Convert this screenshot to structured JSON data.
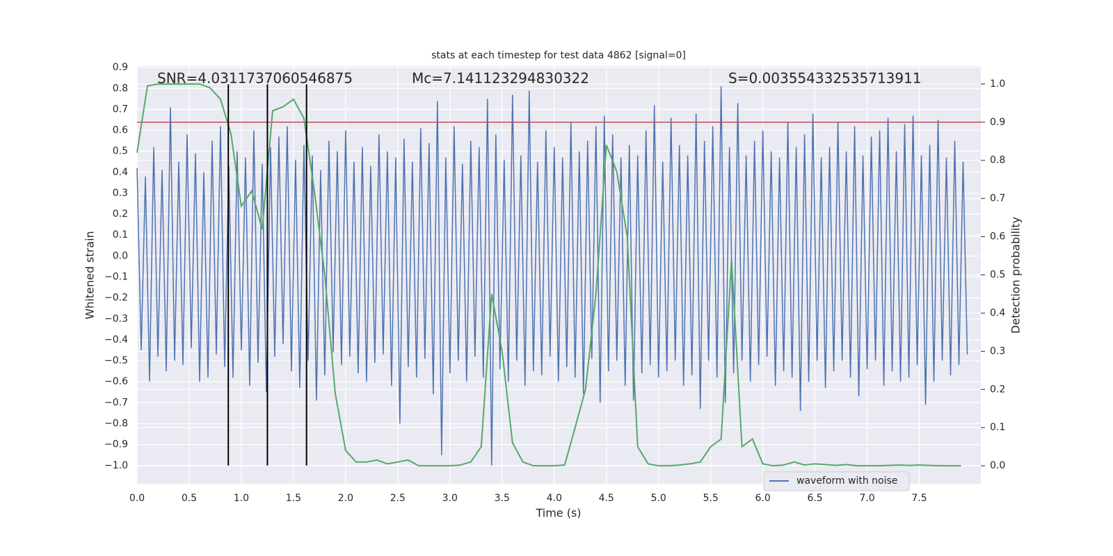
{
  "chart_data": {
    "type": "line",
    "title": "stats at each timestep for test data 4862 [signal=0]",
    "xlabel": "Time (s)",
    "ylabel": "Whitened strain",
    "y2label": "Detection probability",
    "annotations": [
      "SNR=4.0311737060546875",
      "Mc=7.141123294830322",
      "S=0.003554332535713911"
    ],
    "xlim": [
      0,
      8.09
    ],
    "ylim": [
      -1.087,
      0.907
    ],
    "y2lim": [
      -0.047,
      1.047
    ],
    "xticks": [
      {
        "value": 0,
        "label": "0.0"
      },
      0.5,
      {
        "value": 1,
        "label": "1.0"
      },
      1.5,
      {
        "value": 2,
        "label": "2.0"
      },
      2.5,
      {
        "value": 3,
        "label": "3.0"
      },
      3.5,
      {
        "value": 4,
        "label": "4.0"
      },
      4.5,
      {
        "value": 5,
        "label": "5.0"
      },
      5.5,
      {
        "value": 6,
        "label": "6.0"
      },
      6.5,
      {
        "value": 7,
        "label": "7.0"
      },
      7.5
    ],
    "yticks": [
      {
        "value": -1,
        "label": "−1.0"
      },
      {
        "value": -0.9,
        "label": "−0.9"
      },
      {
        "value": -0.8,
        "label": "−0.8"
      },
      {
        "value": -0.7,
        "label": "−0.7"
      },
      {
        "value": -0.6,
        "label": "−0.6"
      },
      {
        "value": -0.5,
        "label": "−0.5"
      },
      {
        "value": -0.4,
        "label": "−0.4"
      },
      {
        "value": -0.3,
        "label": "−0.3"
      },
      {
        "value": -0.2,
        "label": "−0.2"
      },
      {
        "value": -0.1,
        "label": "−0.1"
      },
      {
        "value": 0,
        "label": "0.0"
      },
      0.1,
      0.2,
      0.3,
      0.4,
      0.5,
      0.6,
      0.7,
      0.8,
      0.9
    ],
    "y2ticks": [
      {
        "value": 0,
        "label": "0.0"
      },
      0.1,
      0.2,
      0.3,
      0.4,
      0.5,
      0.6,
      0.7,
      0.8,
      0.9,
      {
        "value": 1,
        "label": "1.0"
      }
    ],
    "grid": true,
    "legend": "lower right",
    "threshold": {
      "value": 0.9,
      "color": "#c44e52",
      "axis": "y2"
    },
    "vlines": {
      "x": [
        0.875,
        1.25,
        1.625
      ],
      "ylim": [
        -1.0,
        0.82
      ],
      "color": "#000000"
    },
    "series": [
      {
        "name": "waveform with noise",
        "color": "#4c72b0",
        "x": [
          0,
          0.04,
          0.08,
          0.12,
          0.16,
          0.2,
          0.24,
          0.28,
          0.32,
          0.36,
          0.4,
          0.44,
          0.48,
          0.52,
          0.56,
          0.6,
          0.64,
          0.68,
          0.72,
          0.76,
          0.8,
          0.84,
          0.88,
          0.92,
          0.96,
          1,
          1.04,
          1.08,
          1.12,
          1.16,
          1.2,
          1.24,
          1.28,
          1.32,
          1.36,
          1.4,
          1.44,
          1.48,
          1.52,
          1.56,
          1.6,
          1.64,
          1.68,
          1.72,
          1.76,
          1.8,
          1.84,
          1.88,
          1.92,
          1.96,
          2,
          2.04,
          2.08,
          2.12,
          2.16,
          2.2,
          2.24,
          2.28,
          2.32,
          2.36,
          2.4,
          2.44,
          2.48,
          2.52,
          2.56,
          2.6,
          2.64,
          2.68,
          2.72,
          2.76,
          2.8,
          2.84,
          2.88,
          2.92,
          2.96,
          3,
          3.04,
          3.08,
          3.12,
          3.16,
          3.2,
          3.24,
          3.28,
          3.32,
          3.36,
          3.4,
          3.44,
          3.48,
          3.52,
          3.56,
          3.6,
          3.64,
          3.68,
          3.72,
          3.76,
          3.8,
          3.84,
          3.88,
          3.92,
          3.96,
          4,
          4.04,
          4.08,
          4.12,
          4.16,
          4.2,
          4.24,
          4.28,
          4.32,
          4.36,
          4.4,
          4.44,
          4.48,
          4.52,
          4.56,
          4.6,
          4.64,
          4.68,
          4.72,
          4.76,
          4.8,
          4.84,
          4.88,
          4.92,
          4.96,
          5,
          5.04,
          5.08,
          5.12,
          5.16,
          5.2,
          5.24,
          5.28,
          5.32,
          5.36,
          5.4,
          5.44,
          5.48,
          5.52,
          5.56,
          5.6,
          5.64,
          5.68,
          5.72,
          5.76,
          5.8,
          5.84,
          5.88,
          5.92,
          5.96,
          6,
          6.04,
          6.08,
          6.12,
          6.16,
          6.2,
          6.24,
          6.28,
          6.32,
          6.36,
          6.4,
          6.44,
          6.48,
          6.52,
          6.56,
          6.6,
          6.64,
          6.68,
          6.72,
          6.76,
          6.8,
          6.84,
          6.88,
          6.92,
          6.96,
          7,
          7.04,
          7.08,
          7.12,
          7.16,
          7.2,
          7.24,
          7.28,
          7.32,
          7.36,
          7.4,
          7.44,
          7.48,
          7.52,
          7.56,
          7.6,
          7.64,
          7.68,
          7.72,
          7.76,
          7.8,
          7.84,
          7.88,
          7.92,
          7.96
        ],
        "values": [
          0.42,
          -0.45,
          0.38,
          -0.6,
          0.52,
          -0.48,
          0.41,
          -0.55,
          0.71,
          -0.5,
          0.45,
          -0.52,
          0.58,
          -0.44,
          0.49,
          -0.6,
          0.4,
          -0.58,
          0.55,
          -0.47,
          0.62,
          -0.53,
          0.43,
          -0.58,
          0.5,
          -0.45,
          0.47,
          -0.62,
          0.6,
          -0.51,
          0.44,
          -0.65,
          0.52,
          -0.48,
          0.57,
          -0.42,
          0.62,
          -0.55,
          0.46,
          -0.63,
          0.53,
          -0.5,
          0.48,
          -0.69,
          0.41,
          -0.57,
          0.55,
          -0.46,
          0.5,
          -0.52,
          0.6,
          -0.48,
          0.45,
          -0.56,
          0.52,
          -0.6,
          0.43,
          -0.51,
          0.58,
          -0.47,
          0.5,
          -0.62,
          0.47,
          -0.8,
          0.56,
          -0.53,
          0.45,
          -0.58,
          0.61,
          -0.49,
          0.54,
          -0.66,
          0.74,
          -0.95,
          0.47,
          -0.56,
          0.62,
          -0.5,
          0.44,
          -0.6,
          0.55,
          -0.48,
          0.52,
          -0.58,
          0.75,
          -1.0,
          0.58,
          -0.54,
          0.46,
          -0.6,
          0.77,
          -0.5,
          0.48,
          -0.62,
          0.79,
          -0.55,
          0.45,
          -0.57,
          0.6,
          -0.48,
          0.52,
          -0.6,
          0.47,
          -0.53,
          0.64,
          -0.58,
          0.5,
          -0.66,
          0.55,
          -0.49,
          0.62,
          -0.7,
          0.67,
          -0.55,
          0.58,
          -0.5,
          0.47,
          -0.62,
          0.53,
          -0.69,
          0.48,
          -0.56,
          0.6,
          -0.52,
          0.72,
          -0.58,
          0.45,
          -0.55,
          0.66,
          -0.5,
          0.53,
          -0.62,
          0.48,
          -0.57,
          0.68,
          -0.73,
          0.55,
          -0.5,
          0.62,
          -0.58,
          0.81,
          -0.7,
          0.52,
          -0.56,
          0.73,
          -0.5,
          0.48,
          -0.6,
          0.55,
          -0.52,
          0.6,
          -0.48,
          0.5,
          -0.62,
          0.47,
          -0.55,
          0.64,
          -0.58,
          0.52,
          -0.74,
          0.58,
          -0.6,
          0.68,
          -0.5,
          0.47,
          -0.63,
          0.52,
          -0.55,
          0.64,
          -0.5,
          0.5,
          -0.58,
          0.62,
          -0.67,
          0.48,
          -0.54,
          0.57,
          -0.5,
          0.6,
          -0.62,
          0.66,
          -0.55,
          0.5,
          -0.6,
          0.63,
          -0.58,
          0.67,
          -0.52,
          0.48,
          -0.71,
          0.53,
          -0.6,
          0.65,
          -0.5,
          0.47,
          -0.57,
          0.55,
          -0.52,
          0.45,
          -0.47
        ]
      },
      {
        "color": "#55a868",
        "axis": "y2",
        "x": [
          0,
          0.1,
          0.2,
          0.3,
          0.4,
          0.5,
          0.6,
          0.7,
          0.8,
          0.9,
          1,
          1.1,
          1.2,
          1.3,
          1.4,
          1.5,
          1.6,
          1.7,
          1.8,
          1.9,
          2,
          2.1,
          2.2,
          2.3,
          2.4,
          2.5,
          2.6,
          2.7,
          2.8,
          2.9,
          3,
          3.1,
          3.2,
          3.3,
          3.4,
          3.5,
          3.6,
          3.7,
          3.8,
          3.9,
          4,
          4.1,
          4.2,
          4.3,
          4.4,
          4.5,
          4.6,
          4.7,
          4.8,
          4.9,
          5,
          5.1,
          5.2,
          5.3,
          5.4,
          5.5,
          5.6,
          5.7,
          5.8,
          5.9,
          6,
          6.1,
          6.2,
          6.3,
          6.4,
          6.5,
          6.6,
          6.7,
          6.8,
          6.9,
          7,
          7.1,
          7.2,
          7.3,
          7.4,
          7.5,
          7.6,
          7.7,
          7.8,
          7.9
        ],
        "values": [
          0.82,
          0.995,
          1.0,
          1.0,
          1.0,
          1.0,
          1.0,
          0.99,
          0.96,
          0.87,
          0.68,
          0.72,
          0.62,
          0.93,
          0.94,
          0.96,
          0.91,
          0.72,
          0.5,
          0.19,
          0.04,
          0.01,
          0.01,
          0.015,
          0.005,
          0.01,
          0.015,
          0.0,
          0.0,
          0.0,
          0.0,
          0.002,
          0.01,
          0.05,
          0.45,
          0.3,
          0.06,
          0.01,
          0.0,
          0.0,
          0.0,
          0.002,
          0.1,
          0.2,
          0.45,
          0.84,
          0.77,
          0.6,
          0.05,
          0.005,
          0.0,
          0.0,
          0.002,
          0.005,
          0.01,
          0.05,
          0.07,
          0.54,
          0.05,
          0.07,
          0.005,
          0.0,
          0.002,
          0.01,
          0.002,
          0.005,
          0.003,
          0.001,
          0.003,
          0.0,
          0.0,
          0.0,
          0.001,
          0.002,
          0.001,
          0.002,
          0.001,
          0.0,
          0.0,
          0.0
        ]
      }
    ]
  }
}
